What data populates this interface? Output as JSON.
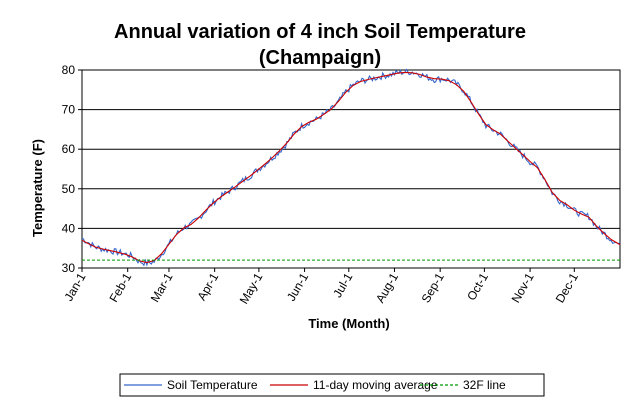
{
  "chart_data": {
    "type": "line",
    "title": "Annual variation of 4 inch Soil Temperature",
    "subtitle": "(Champaign)",
    "xlabel": "Time (Month)",
    "ylabel": "Temperature (F)",
    "x_ticks": [
      "Jan-1",
      "Feb-1",
      "Mar-1",
      "Apr-1",
      "May-1",
      "Jun-1",
      "Jul-1",
      "Aug-1",
      "Sep-1",
      "Oct-1",
      "Nov-1",
      "Dec-1"
    ],
    "x_tick_days": [
      1,
      32,
      60,
      91,
      121,
      152,
      182,
      213,
      244,
      274,
      305,
      335
    ],
    "xlim": [
      1,
      366
    ],
    "ylim": [
      30,
      80
    ],
    "y_ticks": [
      30,
      40,
      50,
      60,
      70,
      80
    ],
    "grid": "horizontal",
    "legend_position": "bottom",
    "series": [
      {
        "name": "Soil Temperature",
        "color": "#3366cc",
        "noisy": true,
        "x": [
          1,
          5,
          10,
          15,
          20,
          25,
          30,
          35,
          40,
          45,
          50,
          55,
          60,
          65,
          70,
          75,
          80,
          85,
          90,
          95,
          100,
          105,
          110,
          115,
          120,
          125,
          130,
          135,
          140,
          145,
          150,
          155,
          160,
          165,
          170,
          175,
          180,
          185,
          190,
          195,
          200,
          205,
          210,
          215,
          220,
          225,
          230,
          235,
          240,
          245,
          250,
          255,
          260,
          265,
          270,
          275,
          280,
          285,
          290,
          295,
          300,
          305,
          310,
          315,
          320,
          325,
          330,
          335,
          340,
          345,
          350,
          355,
          360,
          366
        ],
        "y": [
          37.5,
          36.5,
          35.3,
          34.8,
          34.4,
          34.0,
          33.6,
          33.0,
          31.6,
          31.2,
          31.6,
          33.5,
          36.0,
          38.5,
          40.2,
          41.0,
          42.5,
          44.5,
          46.5,
          48.0,
          49.2,
          50.5,
          52.0,
          53.2,
          54.8,
          56.2,
          57.8,
          59.5,
          61.5,
          64.0,
          65.8,
          66.8,
          67.5,
          68.8,
          70.0,
          72.0,
          74.5,
          76.2,
          77.2,
          77.6,
          78.0,
          78.5,
          78.8,
          79.3,
          79.5,
          79.5,
          79.0,
          78.2,
          77.6,
          77.8,
          77.5,
          76.5,
          74.8,
          72.0,
          68.8,
          66.0,
          64.8,
          63.8,
          62.0,
          60.2,
          58.5,
          56.8,
          55.5,
          52.5,
          49.0,
          47.0,
          46.0,
          44.5,
          43.5,
          43.0,
          40.5,
          38.8,
          37.2,
          35.8
        ]
      },
      {
        "name": "11-day moving average",
        "color": "#cc0000",
        "x": [
          1,
          5,
          10,
          15,
          20,
          25,
          30,
          35,
          40,
          45,
          50,
          55,
          60,
          65,
          70,
          75,
          80,
          85,
          90,
          95,
          100,
          105,
          110,
          115,
          120,
          125,
          130,
          135,
          140,
          145,
          150,
          155,
          160,
          165,
          170,
          175,
          180,
          185,
          190,
          195,
          200,
          205,
          210,
          215,
          220,
          225,
          230,
          235,
          240,
          245,
          250,
          255,
          260,
          265,
          270,
          275,
          280,
          285,
          290,
          295,
          300,
          305,
          310,
          315,
          320,
          325,
          330,
          335,
          340,
          345,
          350,
          355,
          360,
          366
        ],
        "y": [
          37.0,
          36.2,
          35.3,
          34.8,
          34.4,
          34.0,
          33.5,
          32.8,
          31.8,
          31.4,
          31.9,
          33.6,
          36.0,
          38.4,
          40.1,
          41.0,
          42.6,
          44.6,
          46.4,
          47.9,
          49.2,
          50.5,
          51.9,
          53.2,
          54.7,
          56.2,
          57.8,
          59.6,
          61.6,
          63.9,
          65.7,
          66.8,
          67.6,
          68.8,
          70.1,
          72.1,
          74.4,
          76.1,
          77.1,
          77.6,
          78.0,
          78.4,
          78.8,
          79.2,
          79.4,
          79.3,
          78.9,
          78.2,
          77.8,
          77.7,
          77.3,
          76.3,
          74.6,
          71.9,
          68.9,
          66.2,
          64.9,
          63.8,
          62.0,
          60.3,
          58.6,
          56.9,
          55.3,
          52.4,
          49.1,
          47.1,
          46.0,
          44.6,
          43.6,
          42.8,
          40.6,
          38.8,
          37.2,
          35.9
        ]
      },
      {
        "name": "32F line",
        "color": "#009900",
        "dashed": true,
        "x": [
          1,
          366
        ],
        "y": [
          32,
          32
        ]
      }
    ]
  }
}
